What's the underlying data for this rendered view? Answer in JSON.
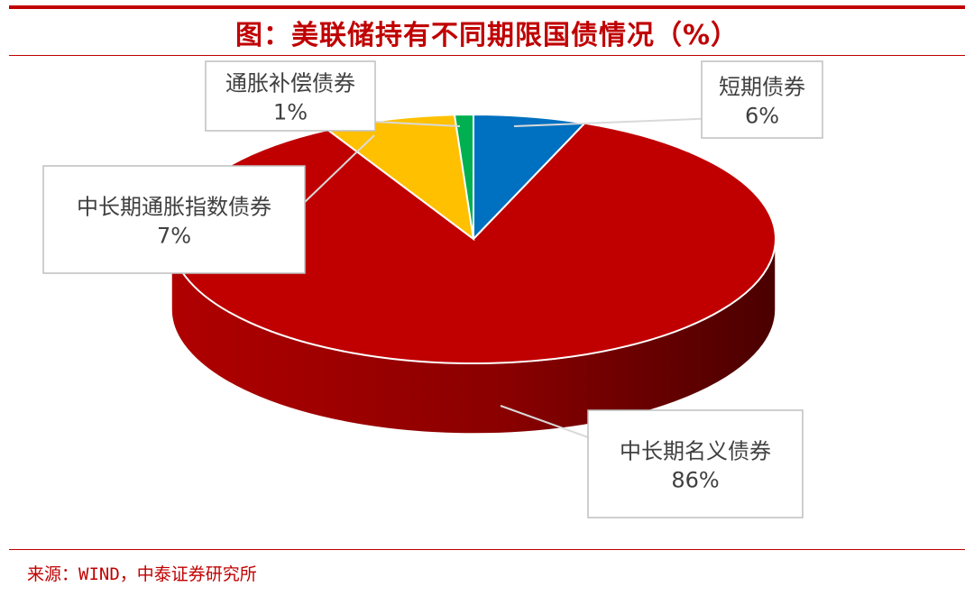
{
  "chart_data": {
    "type": "pie",
    "title": "图：美联储持有不同期限国债情况（%）",
    "categories": [
      "短期债券",
      "中长期名义债券",
      "中长期通胀指数债券",
      "通胀补偿债券"
    ],
    "values": [
      6,
      86,
      7,
      1
    ],
    "value_labels": [
      "6%",
      "86%",
      "7%",
      "1%"
    ],
    "colors": [
      "#0070c0",
      "#c00000",
      "#ffc000",
      "#00b050"
    ],
    "three_d": true,
    "legend": "none"
  },
  "source": "来源：WIND，中泰证券研究所"
}
